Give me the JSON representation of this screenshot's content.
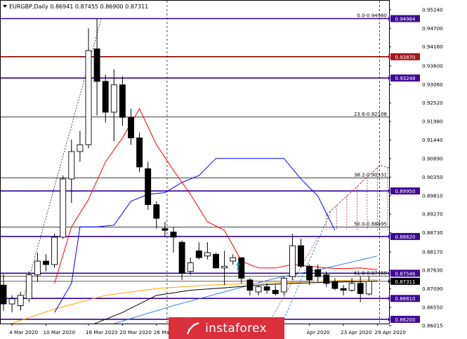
{
  "header": {
    "symbol_line": "EURGBP,Daily  0.86941 0.87455 0.86900 0.87311"
  },
  "colors": {
    "bull": "#ffffff",
    "bear": "#000000",
    "tenkan": "#ff0000",
    "kijun": "#0000ff",
    "ma_black": "#000000",
    "ma_orange": "#ffa500",
    "ma_blue": "#1e6fd9",
    "level_purple": "#330099",
    "level_maroon": "#8b0000",
    "tag_purple": "#3d0a91",
    "tag_maroon": "#a3161e",
    "tag_current": "#000000",
    "fibo_fan": "#8b1a1a"
  },
  "chart_data": {
    "type": "candlestick",
    "symbol": "EURGBP",
    "timeframe": "Daily",
    "ohlc_header": {
      "open": 0.86941,
      "high": 0.87455,
      "low": 0.869,
      "close": 0.87311
    },
    "ylim": [
      0.8601,
      0.9535
    ],
    "y_ticks": [
      0.9524,
      0.947,
      0.9416,
      0.936,
      0.9306,
      0.9252,
      0.9198,
      0.9144,
      0.9089,
      0.9035,
      0.8981,
      0.8927,
      0.8873,
      0.8817,
      0.8763,
      0.8709,
      0.8655,
      0.86015
    ],
    "y_tick_labels": [
      "0.95240",
      "0.94700",
      "0.94160",
      "0.93600",
      "0.93060",
      "0.92520",
      "0.91980",
      "0.91440",
      "0.90890",
      "0.90350",
      "0.89810",
      "0.89270",
      "0.88730",
      "0.88170",
      "0.87630",
      "0.87090",
      "0.86550",
      "0.86015"
    ],
    "x_labels": [
      {
        "i": 1,
        "label": "4 Mar 2020"
      },
      {
        "i": 5,
        "label": "10 Mar 2020"
      },
      {
        "i": 10,
        "label": "16 Mar 2020"
      },
      {
        "i": 14,
        "label": "20 Mar 2020"
      },
      {
        "i": 18,
        "label": "26 Mar 2020"
      },
      {
        "i": 36,
        "label": "Apr 2020"
      },
      {
        "i": 40,
        "label": "23 Apr 2020"
      },
      {
        "i": 44,
        "label": "29 Apr 2020"
      }
    ],
    "candles": [
      {
        "o": 0.872,
        "h": 0.8752,
        "l": 0.8645,
        "c": 0.8665
      },
      {
        "o": 0.8665,
        "h": 0.869,
        "l": 0.864,
        "c": 0.868
      },
      {
        "o": 0.866,
        "h": 0.87,
        "l": 0.8645,
        "c": 0.869
      },
      {
        "o": 0.868,
        "h": 0.876,
        "l": 0.867,
        "c": 0.875
      },
      {
        "o": 0.875,
        "h": 0.8815,
        "l": 0.873,
        "c": 0.879
      },
      {
        "o": 0.879,
        "h": 0.881,
        "l": 0.876,
        "c": 0.878
      },
      {
        "o": 0.878,
        "h": 0.887,
        "l": 0.877,
        "c": 0.886
      },
      {
        "o": 0.886,
        "h": 0.904,
        "l": 0.8855,
        "c": 0.903
      },
      {
        "o": 0.903,
        "h": 0.9145,
        "l": 0.896,
        "c": 0.911
      },
      {
        "o": 0.911,
        "h": 0.917,
        "l": 0.908,
        "c": 0.913
      },
      {
        "o": 0.913,
        "h": 0.947,
        "l": 0.912,
        "c": 0.9405
      },
      {
        "o": 0.941,
        "h": 0.9498,
        "l": 0.9215,
        "c": 0.9315
      },
      {
        "o": 0.9315,
        "h": 0.9335,
        "l": 0.9195,
        "c": 0.9225
      },
      {
        "o": 0.9225,
        "h": 0.935,
        "l": 0.914,
        "c": 0.9305
      },
      {
        "o": 0.9305,
        "h": 0.933,
        "l": 0.9185,
        "c": 0.921
      },
      {
        "o": 0.921,
        "h": 0.9235,
        "l": 0.913,
        "c": 0.915
      },
      {
        "o": 0.915,
        "h": 0.9165,
        "l": 0.905,
        "c": 0.9065
      },
      {
        "o": 0.906,
        "h": 0.908,
        "l": 0.894,
        "c": 0.8955
      },
      {
        "o": 0.8955,
        "h": 0.8965,
        "l": 0.8885,
        "c": 0.8915
      },
      {
        "o": 0.8885,
        "h": 0.8905,
        "l": 0.886,
        "c": 0.888
      },
      {
        "o": 0.8875,
        "h": 0.889,
        "l": 0.8815,
        "c": 0.886
      },
      {
        "o": 0.8845,
        "h": 0.885,
        "l": 0.8735,
        "c": 0.8755
      },
      {
        "o": 0.876,
        "h": 0.88,
        "l": 0.875,
        "c": 0.8785
      },
      {
        "o": 0.882,
        "h": 0.8845,
        "l": 0.8795,
        "c": 0.88
      },
      {
        "o": 0.8805,
        "h": 0.8845,
        "l": 0.8795,
        "c": 0.8815
      },
      {
        "o": 0.881,
        "h": 0.8815,
        "l": 0.877,
        "c": 0.877
      },
      {
        "o": 0.877,
        "h": 0.882,
        "l": 0.872,
        "c": 0.8775
      },
      {
        "o": 0.879,
        "h": 0.881,
        "l": 0.878,
        "c": 0.88
      },
      {
        "o": 0.88,
        "h": 0.88,
        "l": 0.8725,
        "c": 0.874
      },
      {
        "o": 0.8735,
        "h": 0.874,
        "l": 0.869,
        "c": 0.8705
      },
      {
        "o": 0.87,
        "h": 0.872,
        "l": 0.869,
        "c": 0.8715
      },
      {
        "o": 0.8715,
        "h": 0.8725,
        "l": 0.8695,
        "c": 0.8705
      },
      {
        "o": 0.8705,
        "h": 0.872,
        "l": 0.869,
        "c": 0.8695
      },
      {
        "o": 0.87,
        "h": 0.8745,
        "l": 0.869,
        "c": 0.874
      },
      {
        "o": 0.8745,
        "h": 0.887,
        "l": 0.8735,
        "c": 0.8835
      },
      {
        "o": 0.8835,
        "h": 0.8855,
        "l": 0.877,
        "c": 0.8775
      },
      {
        "o": 0.8775,
        "h": 0.878,
        "l": 0.872,
        "c": 0.8735
      },
      {
        "o": 0.8765,
        "h": 0.878,
        "l": 0.873,
        "c": 0.8745
      },
      {
        "o": 0.875,
        "h": 0.876,
        "l": 0.8715,
        "c": 0.8725
      },
      {
        "o": 0.873,
        "h": 0.874,
        "l": 0.8705,
        "c": 0.871
      },
      {
        "o": 0.871,
        "h": 0.872,
        "l": 0.869,
        "c": 0.8705
      },
      {
        "o": 0.8705,
        "h": 0.874,
        "l": 0.87,
        "c": 0.8725
      },
      {
        "o": 0.8725,
        "h": 0.8745,
        "l": 0.867,
        "c": 0.8695
      },
      {
        "o": 0.8694,
        "h": 0.8746,
        "l": 0.869,
        "c": 0.8731
      }
    ],
    "tenkan": [
      [
        6,
        0.8725
      ],
      [
        8,
        0.889
      ],
      [
        10,
        0.897
      ],
      [
        12,
        0.908
      ],
      [
        14,
        0.915
      ],
      [
        16,
        0.9235
      ],
      [
        18,
        0.913
      ],
      [
        20,
        0.9055
      ],
      [
        22,
        0.8985
      ],
      [
        24,
        0.8905
      ],
      [
        26,
        0.888
      ],
      [
        28,
        0.879
      ],
      [
        30,
        0.877
      ],
      [
        32,
        0.877
      ],
      [
        34,
        0.878
      ],
      [
        36,
        0.8775
      ],
      [
        38,
        0.877
      ],
      [
        40,
        0.8768
      ],
      [
        42,
        0.877
      ],
      [
        44,
        0.8765
      ]
    ],
    "kijun": [
      [
        6,
        0.864
      ],
      [
        8,
        0.8725
      ],
      [
        9,
        0.889
      ],
      [
        11,
        0.889
      ],
      [
        13,
        0.8895
      ],
      [
        15,
        0.8965
      ],
      [
        17,
        0.8985
      ],
      [
        19,
        0.899
      ],
      [
        21,
        0.902
      ],
      [
        23,
        0.904
      ],
      [
        25,
        0.909
      ],
      [
        27,
        0.909
      ],
      [
        30,
        0.909
      ],
      [
        33,
        0.909
      ],
      [
        35,
        0.903
      ],
      [
        37,
        0.898
      ],
      [
        39,
        0.888
      ]
    ],
    "ma_black": [
      [
        10,
        0.86
      ],
      [
        14,
        0.864
      ],
      [
        18,
        0.869
      ],
      [
        22,
        0.8705
      ],
      [
        26,
        0.8712
      ],
      [
        30,
        0.872
      ],
      [
        34,
        0.8725
      ],
      [
        38,
        0.8728
      ],
      [
        42,
        0.873
      ],
      [
        44,
        0.8732
      ]
    ],
    "ma_orange": [
      [
        0,
        0.86
      ],
      [
        6,
        0.865
      ],
      [
        12,
        0.869
      ],
      [
        18,
        0.871
      ],
      [
        24,
        0.872
      ],
      [
        30,
        0.8725
      ],
      [
        36,
        0.873
      ],
      [
        42,
        0.8735
      ],
      [
        44,
        0.8735
      ]
    ],
    "ma_blue": [
      [
        12,
        0.86
      ],
      [
        20,
        0.866
      ],
      [
        26,
        0.87
      ],
      [
        32,
        0.874
      ],
      [
        38,
        0.877
      ],
      [
        44,
        0.8805
      ]
    ],
    "levels": [
      {
        "name": "fib-0.0",
        "label": "0.0-0.94980",
        "value": 0.9498,
        "color": "#000000"
      },
      {
        "name": "purple-94984",
        "value": 0.94984,
        "color": "#330099",
        "tag": "0.94984",
        "tag_color": "#3d0a91"
      },
      {
        "name": "maroon-93870",
        "value": 0.9387,
        "color": "#8b0000",
        "tag": "0.93870",
        "tag_color": "#a3161e"
      },
      {
        "name": "purple-93248",
        "value": 0.93248,
        "color": "#330099",
        "tag": "0.93248",
        "tag_color": "#3d0a91"
      },
      {
        "name": "fib-23.6",
        "label": "23.6-0.92108",
        "value": 0.92108,
        "color": "#000000"
      },
      {
        "name": "fib-38.2",
        "label": "38.2-0.90331",
        "value": 0.90331,
        "color": "#000000"
      },
      {
        "name": "purple-89950",
        "value": 0.8995,
        "color": "#330099",
        "tag": "0.89950",
        "tag_color": "#3d0a91"
      },
      {
        "name": "fib-50.0",
        "label": "50.0-0.88895",
        "value": 0.88895,
        "color": "#000000"
      },
      {
        "name": "purple-88620",
        "value": 0.8862,
        "color": "#330099",
        "tag": "0.88620",
        "tag_color": "#3d0a91"
      },
      {
        "name": "fib-61.8",
        "label": "61.8-0.87459",
        "value": 0.87459,
        "color": "#000000"
      },
      {
        "name": "purple-87546",
        "value": 0.87546,
        "color": "#330099",
        "tag": "0.87546",
        "tag_color": "#3d0a91"
      },
      {
        "name": "current-price",
        "value": 0.87311,
        "color": "#000000",
        "tag": "0.87311",
        "tag_color": "#000000"
      },
      {
        "name": "purple-86810",
        "value": 0.8681,
        "color": "#330099",
        "tag": "0.86810",
        "tag_color": "#3d0a91"
      },
      {
        "name": "purple-86200",
        "value": 0.862,
        "color": "#330099",
        "tag": "0.86200",
        "tag_color": "#3d0a91"
      }
    ],
    "vlines": [
      19,
      44
    ],
    "grid": false,
    "legend": "none"
  },
  "watermark": {
    "text": "instaforex"
  }
}
